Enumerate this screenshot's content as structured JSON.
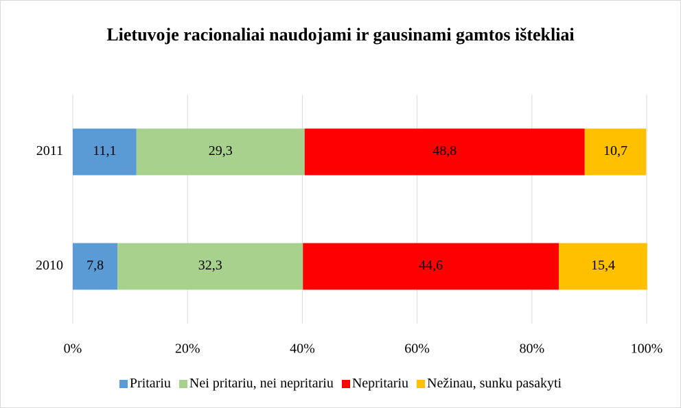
{
  "chart_data": {
    "type": "stacked_barh",
    "title": "Lietuvoje racionaliai naudojami ir gausinami gamtos ištekliai",
    "categories": [
      "2011",
      "2010"
    ],
    "series": [
      {
        "name": "Pritariu",
        "color": "#5b9bd5",
        "values": [
          11.1,
          7.8
        ],
        "value_labels": [
          "11,1",
          "7,8"
        ]
      },
      {
        "name": "Nei pritariu, nei nepritariu",
        "color": "#a9d18e",
        "values": [
          29.3,
          32.3
        ],
        "value_labels": [
          "29,3",
          "32,3"
        ]
      },
      {
        "name": "Nepritariu",
        "color": "#ff0000",
        "values": [
          48.8,
          44.6
        ],
        "value_labels": [
          "48,8",
          "44,6"
        ]
      },
      {
        "name": "Nežinau, sunku pasakyti",
        "color": "#ffc000",
        "values": [
          10.7,
          15.4
        ],
        "value_labels": [
          "10,7",
          "15,4"
        ]
      }
    ],
    "xlim": [
      0,
      100
    ],
    "xticks": [
      {
        "value": 0,
        "label": "0%"
      },
      {
        "value": 20,
        "label": "20%"
      },
      {
        "value": 40,
        "label": "40%"
      },
      {
        "value": 60,
        "label": "60%"
      },
      {
        "value": 80,
        "label": "80%"
      },
      {
        "value": 100,
        "label": "100%"
      }
    ],
    "grid": true,
    "legend": "bottom"
  }
}
